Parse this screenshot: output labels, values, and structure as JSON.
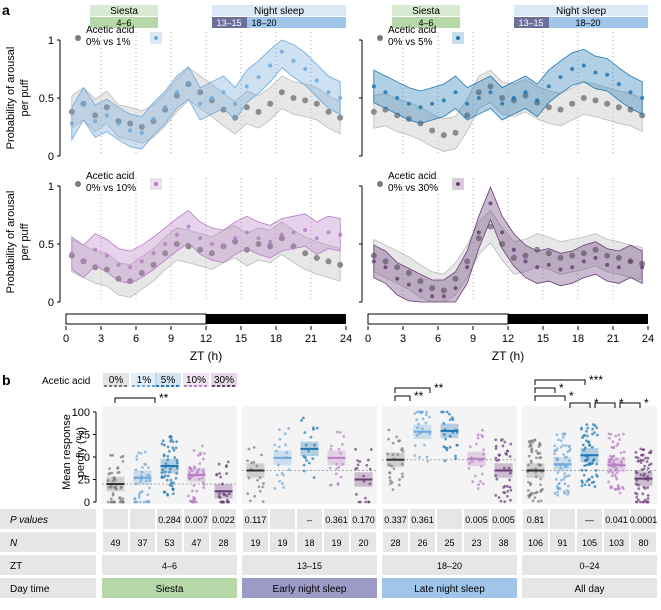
{
  "panel_a": {
    "label": "a",
    "ylabel_line1": "Probability of arousal",
    "ylabel_line2": "per puff",
    "xlabel": "ZT (h)",
    "xticks": [
      "0",
      "3",
      "6",
      "9",
      "12",
      "15",
      "18",
      "21",
      "24"
    ],
    "yticks": [
      "0",
      "0.5",
      "1"
    ],
    "header": {
      "siesta": "Siesta",
      "siesta_range": "4–6",
      "night": "Night sleep",
      "early_range": "13–15",
      "late_range": "18–20"
    },
    "legend_title": "Acetic acid",
    "subplots": [
      {
        "comparison": "0% vs 1%"
      },
      {
        "comparison": "0% vs 5%"
      },
      {
        "comparison": "0% vs 10%"
      },
      {
        "comparison": "0% vs 30%"
      }
    ]
  },
  "panel_b": {
    "label": "b",
    "legend_title": "Acetic acid",
    "legend_items": [
      "0%",
      "1%",
      "5%",
      "10%",
      "30%"
    ],
    "ylabel_line1": "Mean response",
    "ylabel_line2": "per fly (%)",
    "yticks": [
      "0",
      "25",
      "50",
      "75",
      "100"
    ],
    "significance": {
      "g1": "**",
      "g3a": "**",
      "g3b": "**",
      "g4a": "***",
      "g4b": "*",
      "g4c": "*",
      "g4d": "*",
      "g4e": "*",
      "g4f": "***",
      "g4g": "*"
    },
    "table": {
      "p_label": "P values",
      "n_label": "N",
      "zt_label": "ZT",
      "day_label": "Day time",
      "p_values": [
        [
          "",
          "",
          "0.284",
          "0.007",
          "0.022"
        ],
        [
          "0.117",
          "",
          "–",
          "0.361",
          "0.170"
        ],
        [
          "0.337",
          "0.361",
          "",
          "0.005",
          "0.005"
        ],
        [
          "0.81",
          "",
          "—",
          "0.041",
          "0.0001"
        ]
      ],
      "n_values": [
        [
          "49",
          "37",
          "53",
          "47",
          "28"
        ],
        [
          "19",
          "19",
          "18",
          "19",
          "20"
        ],
        [
          "28",
          "26",
          "25",
          "23",
          "38"
        ],
        [
          "106",
          "91",
          "105",
          "103",
          "80"
        ]
      ],
      "zt_values": [
        "4–6",
        "13–15",
        "18–20",
        "0–24"
      ],
      "day_times": [
        "Siesta",
        "Early night sleep",
        "Late night sleep",
        "All day"
      ]
    }
  },
  "chart_data": [
    {
      "type": "line",
      "title": "",
      "subplot": "0% vs 1%",
      "xlabel": "ZT (h)",
      "ylabel": "Probability of arousal per puff",
      "xlim": [
        0,
        24
      ],
      "ylim": [
        0,
        1
      ],
      "x": [
        0.5,
        1.5,
        2.5,
        3.5,
        4.5,
        5.5,
        6.5,
        7.5,
        8.5,
        9.5,
        10.5,
        11.5,
        12.5,
        13.5,
        14.5,
        15.5,
        16.5,
        17.5,
        18.5,
        19.5,
        20.5,
        21.5,
        22.5,
        23.5
      ],
      "series": [
        {
          "name": "0%",
          "values": [
            0.38,
            0.45,
            0.35,
            0.42,
            0.3,
            0.28,
            0.25,
            0.3,
            0.4,
            0.52,
            0.62,
            0.55,
            0.48,
            0.4,
            0.33,
            0.42,
            0.38,
            0.45,
            0.55,
            0.5,
            0.48,
            0.45,
            0.38,
            0.33
          ]
        },
        {
          "name": "1%",
          "values": [
            0.28,
            0.45,
            0.3,
            0.35,
            0.28,
            0.22,
            0.2,
            0.32,
            0.42,
            0.55,
            0.63,
            0.45,
            0.5,
            0.55,
            0.45,
            0.6,
            0.68,
            0.78,
            0.9,
            0.82,
            0.75,
            0.65,
            0.55,
            0.5
          ]
        }
      ]
    },
    {
      "type": "line",
      "title": "",
      "subplot": "0% vs 5%",
      "xlabel": "ZT (h)",
      "ylabel": "Probability of arousal per puff",
      "xlim": [
        0,
        24
      ],
      "ylim": [
        0,
        1
      ],
      "x": [
        0.5,
        1.5,
        2.5,
        3.5,
        4.5,
        5.5,
        6.5,
        7.5,
        8.5,
        9.5,
        10.5,
        11.5,
        12.5,
        13.5,
        14.5,
        15.5,
        16.5,
        17.5,
        18.5,
        19.5,
        20.5,
        21.5,
        22.5,
        23.5
      ],
      "series": [
        {
          "name": "0%",
          "values": [
            0.38,
            0.4,
            0.35,
            0.32,
            0.28,
            0.22,
            0.18,
            0.2,
            0.35,
            0.55,
            0.6,
            0.5,
            0.48,
            0.52,
            0.46,
            0.42,
            0.4,
            0.45,
            0.5,
            0.48,
            0.45,
            0.42,
            0.4,
            0.35
          ]
        },
        {
          "name": "5%",
          "values": [
            0.6,
            0.55,
            0.5,
            0.45,
            0.42,
            0.45,
            0.48,
            0.55,
            0.45,
            0.5,
            0.55,
            0.45,
            0.5,
            0.55,
            0.48,
            0.6,
            0.68,
            0.75,
            0.78,
            0.72,
            0.7,
            0.62,
            0.55,
            0.5
          ]
        }
      ]
    },
    {
      "type": "line",
      "title": "",
      "subplot": "0% vs 10%",
      "xlabel": "ZT (h)",
      "ylabel": "Probability of arousal per puff",
      "xlim": [
        0,
        24
      ],
      "ylim": [
        0,
        1
      ],
      "x": [
        0.5,
        1.5,
        2.5,
        3.5,
        4.5,
        5.5,
        6.5,
        7.5,
        8.5,
        9.5,
        10.5,
        11.5,
        12.5,
        13.5,
        14.5,
        15.5,
        16.5,
        17.5,
        18.5,
        19.5,
        20.5,
        21.5,
        22.5,
        23.5
      ],
      "series": [
        {
          "name": "0%",
          "values": [
            0.4,
            0.35,
            0.3,
            0.28,
            0.2,
            0.18,
            0.25,
            0.32,
            0.42,
            0.5,
            0.48,
            0.45,
            0.42,
            0.48,
            0.52,
            0.45,
            0.5,
            0.48,
            0.55,
            0.48,
            0.42,
            0.38,
            0.35,
            0.32
          ]
        },
        {
          "name": "10%",
          "values": [
            0.42,
            0.35,
            0.45,
            0.4,
            0.32,
            0.3,
            0.35,
            0.42,
            0.5,
            0.58,
            0.65,
            0.55,
            0.5,
            0.48,
            0.55,
            0.6,
            0.55,
            0.52,
            0.58,
            0.6,
            0.62,
            0.55,
            0.6,
            0.58
          ]
        }
      ]
    },
    {
      "type": "line",
      "title": "",
      "subplot": "0% vs 30%",
      "xlabel": "ZT (h)",
      "ylabel": "Probability of arousal per puff",
      "xlim": [
        0,
        24
      ],
      "ylim": [
        0,
        1
      ],
      "x": [
        0.5,
        1.5,
        2.5,
        3.5,
        4.5,
        5.5,
        6.5,
        7.5,
        8.5,
        9.5,
        10.5,
        11.5,
        12.5,
        13.5,
        14.5,
        15.5,
        16.5,
        17.5,
        18.5,
        19.5,
        20.5,
        21.5,
        22.5,
        23.5
      ],
      "series": [
        {
          "name": "0%",
          "values": [
            0.4,
            0.35,
            0.3,
            0.25,
            0.18,
            0.12,
            0.1,
            0.2,
            0.35,
            0.55,
            0.65,
            0.5,
            0.38,
            0.4,
            0.45,
            0.42,
            0.38,
            0.4,
            0.42,
            0.45,
            0.4,
            0.38,
            0.35,
            0.33
          ]
        },
        {
          "name": "30%",
          "values": [
            0.35,
            0.3,
            0.2,
            0.15,
            0.1,
            0.05,
            0.05,
            0.12,
            0.3,
            0.6,
            0.85,
            0.6,
            0.45,
            0.35,
            0.3,
            0.32,
            0.28,
            0.3,
            0.35,
            0.38,
            0.32,
            0.3,
            0.35,
            0.3
          ]
        }
      ]
    },
    {
      "type": "scatter",
      "title": "",
      "subplot": "Mean response per fly",
      "ylabel": "Mean response per fly (%)",
      "ylim": [
        0,
        100
      ],
      "categories": [
        "Siesta",
        "Early night sleep",
        "Late night sleep",
        "All day"
      ],
      "series": [
        {
          "name": "0%",
          "values": [
            20,
            35,
            47,
            35
          ]
        },
        {
          "name": "1%",
          "values": [
            27,
            49,
            78,
            42
          ]
        },
        {
          "name": "5%",
          "values": [
            40,
            59,
            79,
            52
          ]
        },
        {
          "name": "10%",
          "values": [
            30,
            49,
            48,
            41
          ]
        },
        {
          "name": "30%",
          "values": [
            12,
            25,
            35,
            26
          ]
        }
      ]
    }
  ],
  "colors": {
    "c0": "#7a7a7a",
    "c1": "#6fa8dc",
    "c5": "#1f77b4",
    "c10": "#b67fc4",
    "c30": "#6a3d78",
    "siesta_bg": "#b6d7a8",
    "early_bg": "#9e9ac8",
    "late_bg": "#9fc5e8",
    "gray_band": "#d4d4d4"
  }
}
